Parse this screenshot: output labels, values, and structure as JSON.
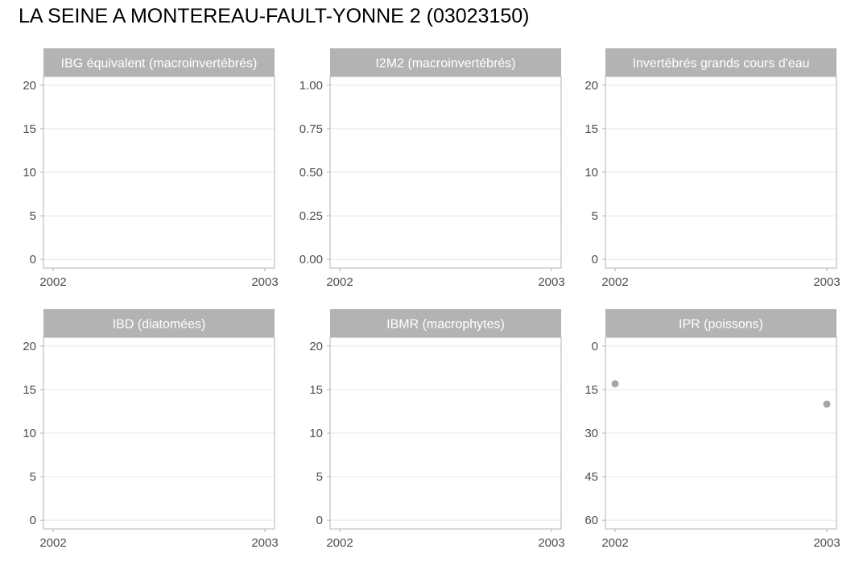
{
  "title": "LA SEINE A MONTEREAU-FAULT-YONNE 2 (03023150)",
  "colors": {
    "strip": "#b3b3b3",
    "grid": "#e6e6e6",
    "border": "#b3b3b3",
    "point": "#a6a6a6",
    "tick_text": "#4d4d4d"
  },
  "chart_data": [
    {
      "type": "scatter",
      "title": "IBG équivalent (macroinvertébrés)",
      "x_ticks": [
        "2002",
        "2003"
      ],
      "xlim": [
        2002,
        2003
      ],
      "y_ticks": [
        "0",
        "5",
        "10",
        "15",
        "20"
      ],
      "ylim": [
        0,
        20
      ],
      "y_reversed": false,
      "grid": true,
      "points": []
    },
    {
      "type": "scatter",
      "title": "I2M2 (macroinvertébrés)",
      "x_ticks": [
        "2002",
        "2003"
      ],
      "xlim": [
        2002,
        2003
      ],
      "y_ticks": [
        "0.00",
        "0.25",
        "0.50",
        "0.75",
        "1.00"
      ],
      "ylim": [
        0,
        1
      ],
      "y_reversed": false,
      "grid": true,
      "points": []
    },
    {
      "type": "scatter",
      "title": "Invertébrés grands cours d'eau",
      "x_ticks": [
        "2002",
        "2003"
      ],
      "xlim": [
        2002,
        2003
      ],
      "y_ticks": [
        "0",
        "5",
        "10",
        "15",
        "20"
      ],
      "ylim": [
        0,
        20
      ],
      "y_reversed": false,
      "grid": true,
      "points": []
    },
    {
      "type": "scatter",
      "title": "IBD (diatomées)",
      "x_ticks": [
        "2002",
        "2003"
      ],
      "xlim": [
        2002,
        2003
      ],
      "y_ticks": [
        "0",
        "5",
        "10",
        "15",
        "20"
      ],
      "ylim": [
        0,
        20
      ],
      "y_reversed": false,
      "grid": true,
      "points": []
    },
    {
      "type": "scatter",
      "title": "IBMR (macrophytes)",
      "x_ticks": [
        "2002",
        "2003"
      ],
      "xlim": [
        2002,
        2003
      ],
      "y_ticks": [
        "0",
        "5",
        "10",
        "15",
        "20"
      ],
      "ylim": [
        0,
        20
      ],
      "y_reversed": false,
      "grid": true,
      "points": []
    },
    {
      "type": "scatter",
      "title": "IPR (poissons)",
      "x_ticks": [
        "2002",
        "2003"
      ],
      "xlim": [
        2002,
        2003
      ],
      "y_ticks": [
        "0",
        "15",
        "30",
        "45",
        "60"
      ],
      "ylim": [
        0,
        60
      ],
      "y_reversed": true,
      "grid": true,
      "points": [
        {
          "x": 2002,
          "y": 13
        },
        {
          "x": 2003,
          "y": 20
        }
      ]
    }
  ]
}
